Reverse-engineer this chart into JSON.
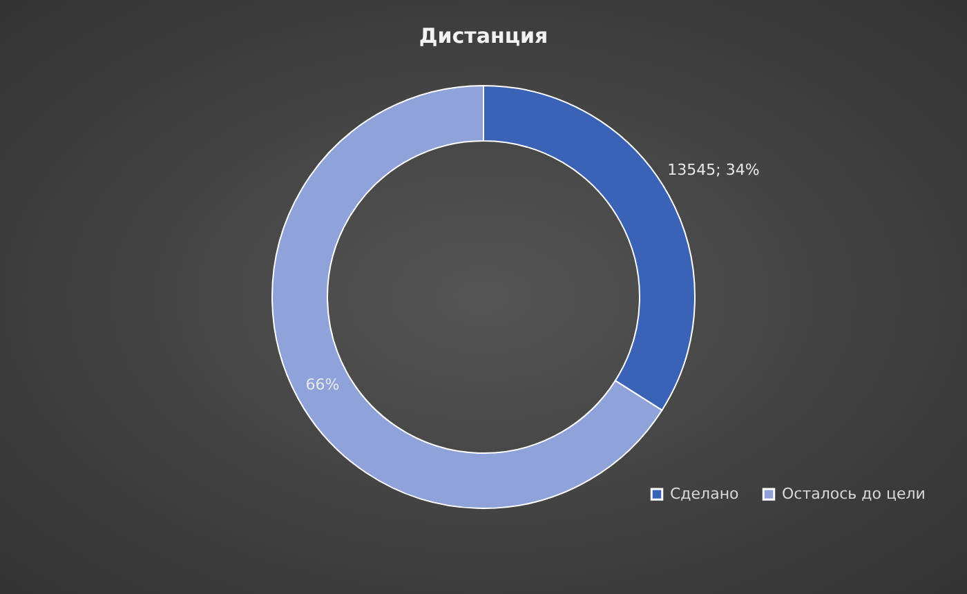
{
  "chart_data": {
    "type": "donut",
    "title": "Дистанция",
    "categories": [
      "Сделано",
      "Осталось до цели"
    ],
    "values": [
      34,
      66
    ],
    "colors": [
      "#3a63b8",
      "#8fa2da"
    ],
    "value_labels": [
      "13545; 34%",
      "66%"
    ],
    "legend": "bottom right"
  }
}
